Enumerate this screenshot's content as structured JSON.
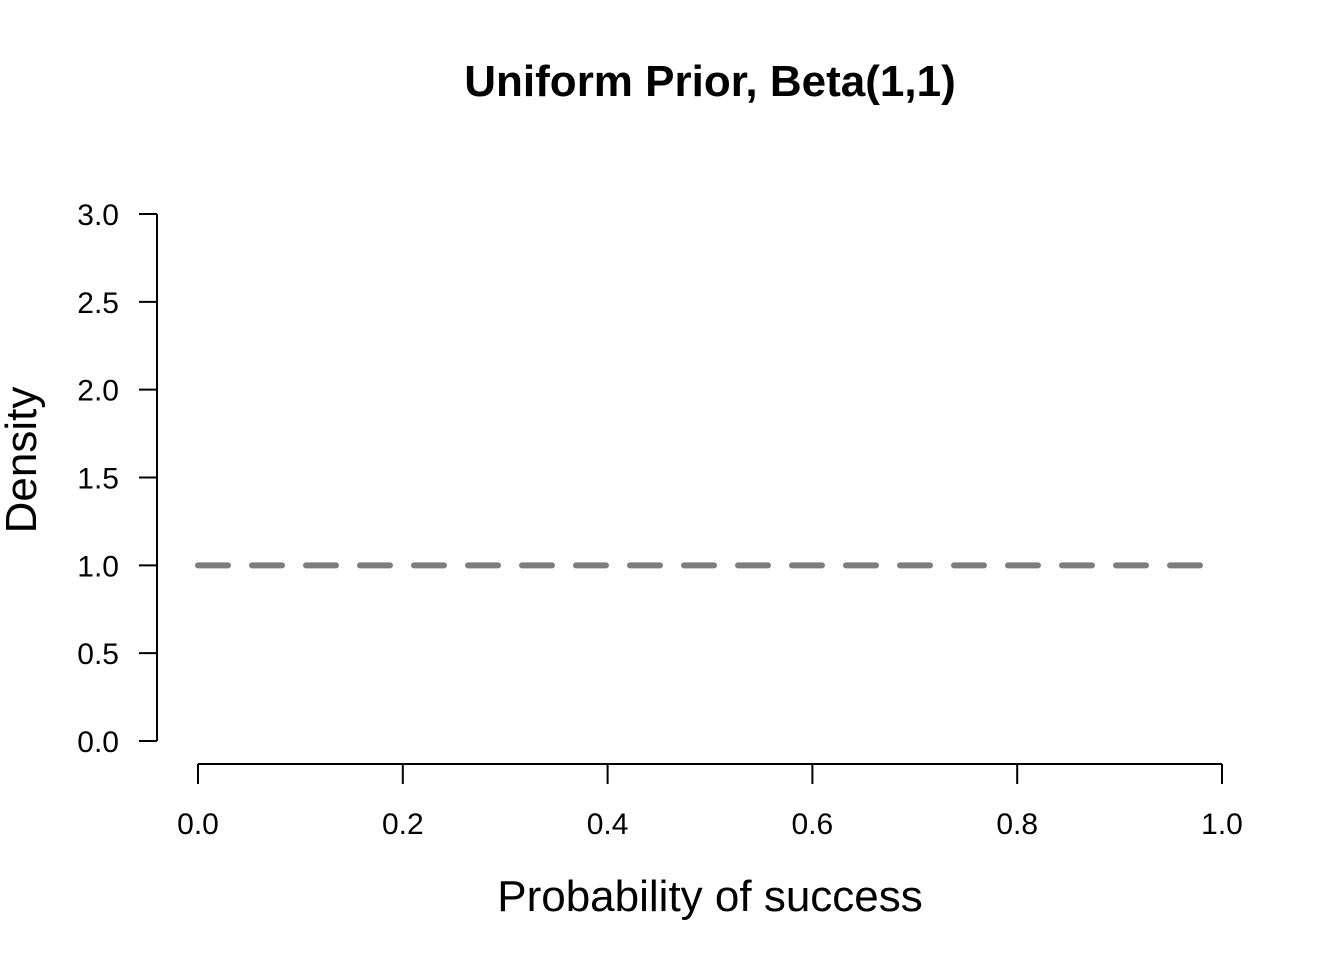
{
  "chart_data": {
    "type": "line",
    "title": "Uniform Prior, Beta(1,1)",
    "xlabel": "Probability of success",
    "ylabel": "Density",
    "xlim": [
      0,
      1
    ],
    "ylim": [
      0,
      3
    ],
    "x_ticks": [
      "0.0",
      "0.2",
      "0.4",
      "0.6",
      "0.8",
      "1.0"
    ],
    "y_ticks": [
      "0.0",
      "0.5",
      "1.0",
      "1.5",
      "2.0",
      "2.5",
      "3.0"
    ],
    "grid": false,
    "legend": "none",
    "series": [
      {
        "x": [
          0.0,
          0.1,
          0.2,
          0.3,
          0.4,
          0.5,
          0.6,
          0.7,
          0.8,
          0.9,
          1.0
        ],
        "y": [
          1,
          1,
          1,
          1,
          1,
          1,
          1,
          1,
          1,
          1,
          1
        ],
        "color": "#7a7f7a",
        "line_style": "dashed"
      }
    ]
  }
}
